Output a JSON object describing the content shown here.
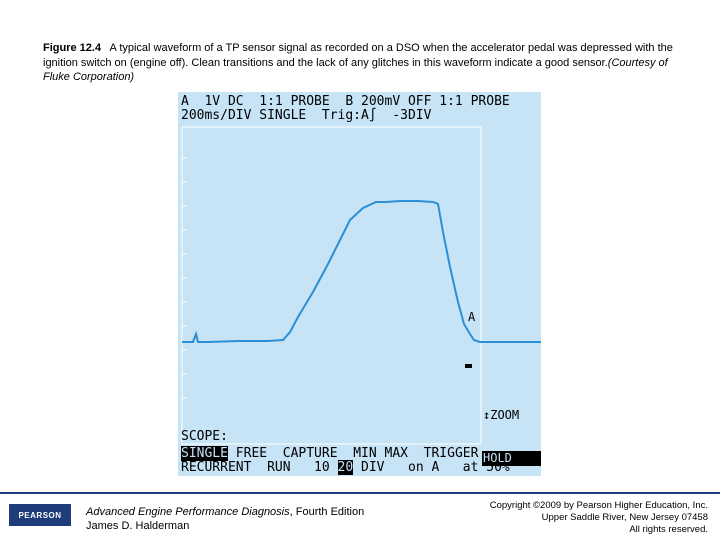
{
  "caption": {
    "figure_label": "Figure 12.4",
    "text": "A typical waveform of a TP sensor signal as recorded on a DSO when the accelerator pedal was depressed with the ignition switch on (engine off). Clean transitions and the lack of any glitches in this waveform indicate a good sensor.",
    "credit": "(Courtesy of Fluke Corporation)"
  },
  "scope": {
    "header_line1": "A  1V DC  1:1 PROBE  B 200mV OFF 1:1 PROBE",
    "header_line2": "200ms/DIV SINGLE  Trig:A∫  -3DIV",
    "channel_marker": "A",
    "zoom_label": "↕ZOOM",
    "hold_label": "HOLD",
    "scope_label": "SCOPE:",
    "bottom_row1": {
      "single": "SINGLE",
      "rest": " FREE  CAPTURE  MIN MAX  TRIGGER"
    },
    "bottom_row2": {
      "prefix": "RECURRENT  RUN   10 ",
      "selected": "20",
      "suffix": " DIV   on A   at 50%"
    }
  },
  "footer": {
    "publisher_logo": "PEARSON",
    "book_title": "Advanced Engine Performance Diagnosis",
    "book_edition": ", Fourth Edition",
    "author": "James D. Halderman",
    "copyright_line1": "Copyright ©2009 by Pearson Higher Education, Inc.",
    "copyright_line2": "Upper Saddle River, New Jersey 07458",
    "copyright_line3": "All rights reserved."
  },
  "colors": {
    "screen_bg": "#c6e4f6",
    "trace": "#2a8fd6",
    "grid": "#ffffff",
    "footer_rule": "#1f3d7a"
  }
}
